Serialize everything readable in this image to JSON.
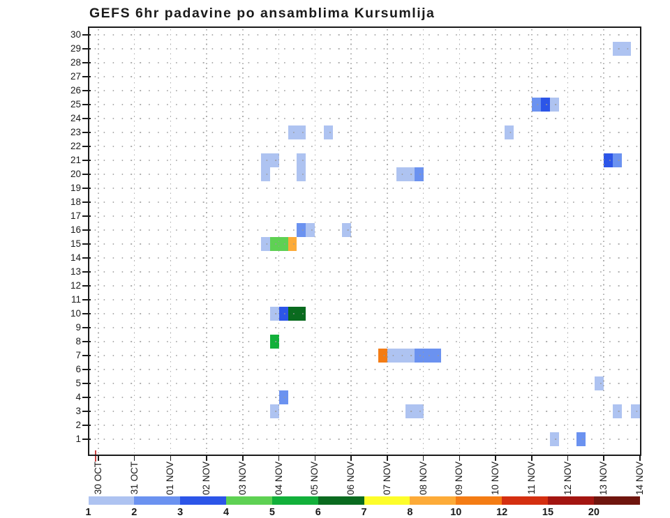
{
  "title": "GEFS 6hr padavine po ansamblima Kursumlija",
  "colors": {
    "background": "#ffffff",
    "axis": "#1a1a1a",
    "grid": "#999999",
    "start_tick": "#c94040"
  },
  "chart_data": {
    "type": "heatmap",
    "title": "GEFS 6hr padavine po ansamblima Kursumlija",
    "xlabel": "",
    "ylabel": "",
    "x_axis": {
      "tick_labels": [
        "30 OCT",
        "31 OCT",
        "01 NOV",
        "02 NOV",
        "03 NOV",
        "04 NOV",
        "05 NOV",
        "06 NOV",
        "07 NOV",
        "08 NOV",
        "09 NOV",
        "10 NOV",
        "11 NOV",
        "12 NOV",
        "13 NOV",
        "14 NOV"
      ],
      "steps_per_day": 4,
      "step_hours": 6,
      "total_steps": 61
    },
    "y_axis": {
      "description": "ensemble member",
      "tick_labels": [
        30,
        29,
        28,
        27,
        26,
        25,
        24,
        23,
        22,
        21,
        20,
        19,
        18,
        17,
        16,
        15,
        14,
        13,
        12,
        11,
        10,
        9,
        8,
        7,
        6,
        5,
        4,
        3,
        2,
        1
      ]
    },
    "legend": {
      "position": "bottom",
      "boundary_labels": [
        "1",
        "2",
        "3",
        "4",
        "5",
        "6",
        "7",
        "8",
        "10",
        "12",
        "15",
        "20"
      ],
      "bin_colors": {
        "1": "#aec3f1",
        "2": "#6b92f0",
        "3": "#2c55e8",
        "4": "#5ed153",
        "5": "#12b03a",
        "6": "#0a6b1f",
        "7": "#fdfd2a",
        "8": "#fdab38",
        "9": "#f47c14",
        "10": "#d42f10",
        "11": "#a31511",
        "12": "#6f150e"
      }
    },
    "grid": true,
    "cells": [
      {
        "member": 29,
        "t": 58,
        "span": 2,
        "bin": 1
      },
      {
        "member": 25,
        "t": 49,
        "span": 1,
        "bin": 2
      },
      {
        "member": 25,
        "t": 50,
        "span": 1,
        "bin": 3
      },
      {
        "member": 25,
        "t": 51,
        "span": 1,
        "bin": 1
      },
      {
        "member": 23,
        "t": 22,
        "span": 2,
        "bin": 1
      },
      {
        "member": 23,
        "t": 26,
        "span": 1,
        "bin": 1
      },
      {
        "member": 23,
        "t": 46,
        "span": 1,
        "bin": 1
      },
      {
        "member": 21,
        "t": 19,
        "span": 2,
        "bin": 1
      },
      {
        "member": 21,
        "t": 23,
        "span": 1,
        "bin": 1
      },
      {
        "member": 21,
        "t": 57,
        "span": 1,
        "bin": 3
      },
      {
        "member": 21,
        "t": 58,
        "span": 1,
        "bin": 2
      },
      {
        "member": 20,
        "t": 19,
        "span": 1,
        "bin": 1
      },
      {
        "member": 20,
        "t": 23,
        "span": 1,
        "bin": 1
      },
      {
        "member": 20,
        "t": 34,
        "span": 2,
        "bin": 1
      },
      {
        "member": 20,
        "t": 36,
        "span": 1,
        "bin": 2
      },
      {
        "member": 16,
        "t": 23,
        "span": 1,
        "bin": 2
      },
      {
        "member": 16,
        "t": 24,
        "span": 1,
        "bin": 1
      },
      {
        "member": 16,
        "t": 28,
        "span": 1,
        "bin": 1
      },
      {
        "member": 15,
        "t": 19,
        "span": 1,
        "bin": 1
      },
      {
        "member": 15,
        "t": 20,
        "span": 2,
        "bin": 4
      },
      {
        "member": 15,
        "t": 22,
        "span": 1,
        "bin": 8
      },
      {
        "member": 10,
        "t": 20,
        "span": 1,
        "bin": 1
      },
      {
        "member": 10,
        "t": 21,
        "span": 1,
        "bin": 3
      },
      {
        "member": 10,
        "t": 22,
        "span": 2,
        "bin": 6
      },
      {
        "member": 8,
        "t": 20,
        "span": 1,
        "bin": 5
      },
      {
        "member": 7,
        "t": 32,
        "span": 1,
        "bin": 9
      },
      {
        "member": 7,
        "t": 33,
        "span": 3,
        "bin": 1
      },
      {
        "member": 7,
        "t": 36,
        "span": 3,
        "bin": 2
      },
      {
        "member": 5,
        "t": 56,
        "span": 1,
        "bin": 1
      },
      {
        "member": 4,
        "t": 21,
        "span": 1,
        "bin": 2
      },
      {
        "member": 3,
        "t": 20,
        "span": 1,
        "bin": 1
      },
      {
        "member": 3,
        "t": 35,
        "span": 2,
        "bin": 1
      },
      {
        "member": 3,
        "t": 58,
        "span": 1,
        "bin": 1
      },
      {
        "member": 3,
        "t": 60,
        "span": 1,
        "bin": 1
      },
      {
        "member": 1,
        "t": 51,
        "span": 1,
        "bin": 1
      },
      {
        "member": 1,
        "t": 54,
        "span": 1,
        "bin": 2
      }
    ]
  }
}
